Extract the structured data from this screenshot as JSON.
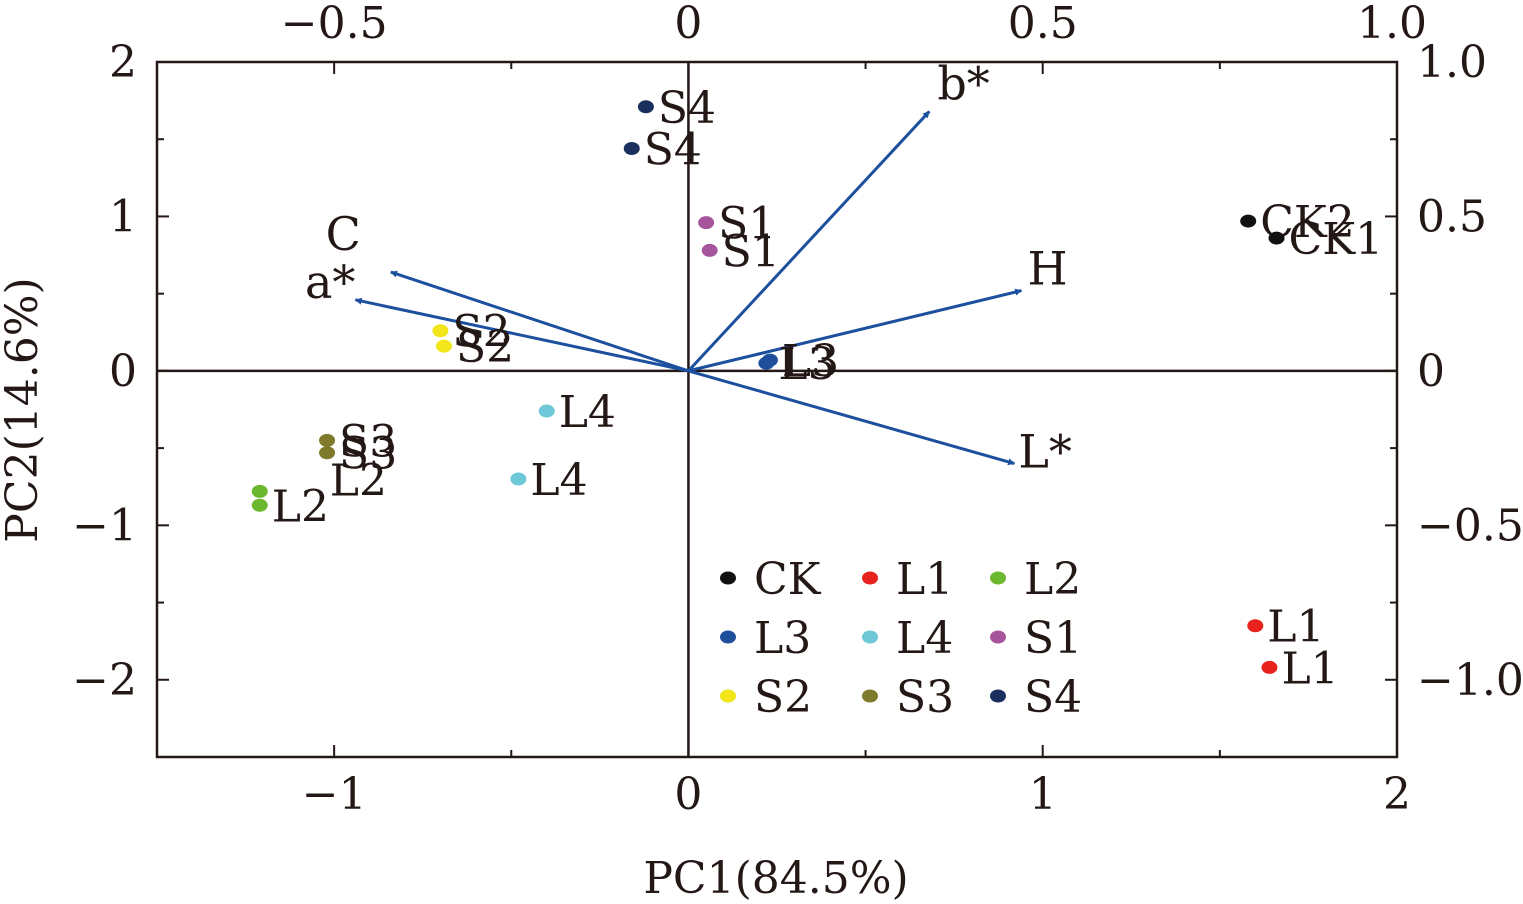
{
  "chart_data": {
    "type": "scatter",
    "subtype": "pca-biplot",
    "xlabel": "PC1(84.5%)",
    "ylabel": "PC2(14.6%)",
    "xlim": [
      -1.5,
      2
    ],
    "ylim": [
      -2.5,
      2
    ],
    "x_ticks": [
      -1,
      0,
      1,
      2
    ],
    "y_ticks": [
      -2,
      -1,
      0,
      1,
      2
    ],
    "x_tick_labels": [
      "−1",
      "0",
      "1",
      "2"
    ],
    "y_tick_labels": [
      "−2",
      "−1",
      "0",
      "1",
      "2"
    ],
    "secondary_x": {
      "lim": [
        -0.75,
        1.0
      ],
      "ticks": [
        -0.5,
        0,
        0.5,
        1.0
      ],
      "tick_labels": [
        "−0.5",
        "0",
        "0.5",
        "1.0"
      ]
    },
    "secondary_y": {
      "lim": [
        -1.25,
        1.0
      ],
      "ticks": [
        -1.0,
        -0.5,
        0,
        0.5,
        1.0
      ],
      "tick_labels": [
        "−1.0",
        "−0.5",
        "0",
        "0.5",
        "1.0"
      ]
    },
    "grid": false,
    "zero_lines": true,
    "legend_position": "bottom-center",
    "groups": [
      {
        "name": "CK",
        "color": "#111111"
      },
      {
        "name": "L1",
        "color": "#e8231d"
      },
      {
        "name": "L2",
        "color": "#6bb82e"
      },
      {
        "name": "L3",
        "color": "#1f4f9c"
      },
      {
        "name": "L4",
        "color": "#6ec8d8"
      },
      {
        "name": "S1",
        "color": "#a6559d"
      },
      {
        "name": "S2",
        "color": "#f2e51a"
      },
      {
        "name": "S3",
        "color": "#7f7a2b"
      },
      {
        "name": "S4",
        "color": "#1b2f5e"
      }
    ],
    "points": [
      {
        "group": "CK",
        "label": "CK2",
        "x": 1.58,
        "y": 0.97
      },
      {
        "group": "CK",
        "label": "CK1",
        "x": 1.66,
        "y": 0.86
      },
      {
        "group": "L1",
        "label": "L1",
        "x": 1.6,
        "y": -1.65
      },
      {
        "group": "L1",
        "label": "L1",
        "x": 1.64,
        "y": -1.92
      },
      {
        "group": "L2",
        "label": "L2",
        "x": -1.21,
        "y": -0.78
      },
      {
        "group": "L2",
        "label": "L2",
        "x": -1.21,
        "y": -0.87
      },
      {
        "group": "L3",
        "label": "L3",
        "x": 0.22,
        "y": 0.05
      },
      {
        "group": "L3",
        "label": "L3",
        "x": 0.23,
        "y": 0.07
      },
      {
        "group": "L4",
        "label": "L4",
        "x": -0.4,
        "y": -0.26
      },
      {
        "group": "L4",
        "label": "L4",
        "x": -0.48,
        "y": -0.7
      },
      {
        "group": "S1",
        "label": "S1",
        "x": 0.05,
        "y": 0.96
      },
      {
        "group": "S1",
        "label": "S1",
        "x": 0.06,
        "y": 0.78
      },
      {
        "group": "S2",
        "label": "S2",
        "x": -0.7,
        "y": 0.26
      },
      {
        "group": "S2",
        "label": "S2",
        "x": -0.69,
        "y": 0.16
      },
      {
        "group": "S3",
        "label": "S3",
        "x": -1.02,
        "y": -0.45
      },
      {
        "group": "S3",
        "label": "S3",
        "x": -1.02,
        "y": -0.53
      },
      {
        "group": "S4",
        "label": "S4",
        "x": -0.12,
        "y": 1.71
      },
      {
        "group": "S4",
        "label": "S4",
        "x": -0.16,
        "y": 1.44
      }
    ],
    "loadings": [
      {
        "label": "b*",
        "x": 0.34,
        "y": 0.84
      },
      {
        "label": "H",
        "x": 0.47,
        "y": 0.26
      },
      {
        "label": "L*",
        "x": 0.46,
        "y": -0.3
      },
      {
        "label": "C",
        "x": -0.42,
        "y": 0.32
      },
      {
        "label": "a*",
        "x": -0.47,
        "y": 0.23
      }
    ],
    "loading_color": "#1c4f9e"
  }
}
